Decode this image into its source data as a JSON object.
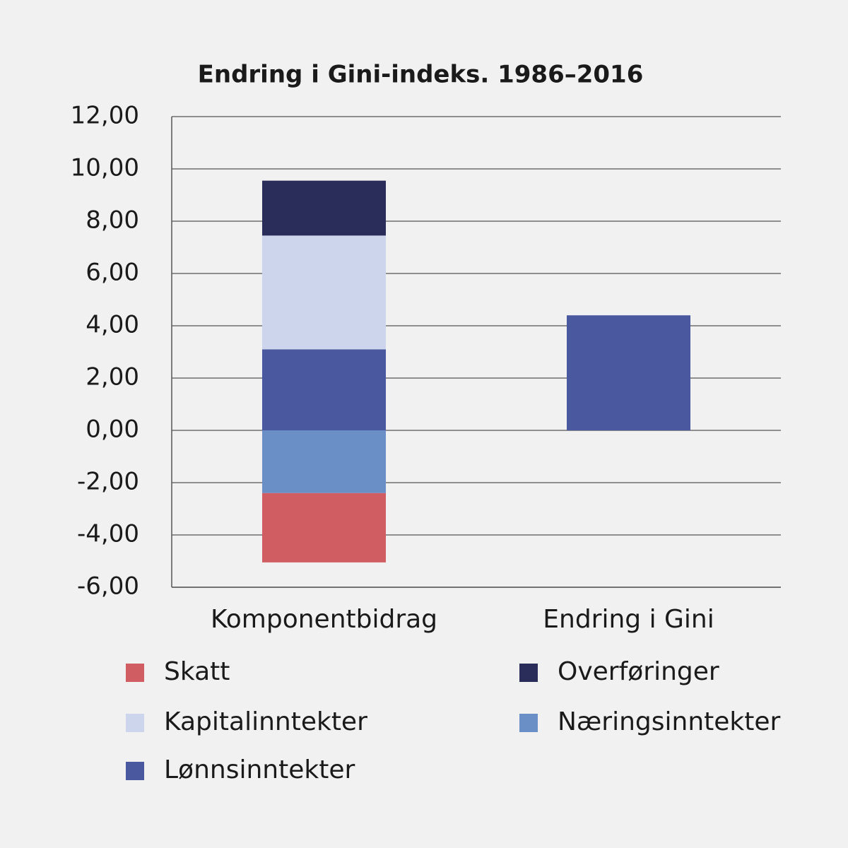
{
  "chart_data": {
    "type": "stacked_bar",
    "title": "Endring i Gini-indeks. 1986–2016",
    "categories": [
      "Komponentbidrag",
      "Endring i Gini"
    ],
    "series": [
      {
        "name": "Lønnsinntekter",
        "color": "#4a58a0",
        "values": [
          3.1,
          4.4
        ]
      },
      {
        "name": "Næringsinntekter",
        "color": "#6a8fc7",
        "values": [
          -2.4,
          null
        ]
      },
      {
        "name": "Kapitalinntekter",
        "color": "#cdd5ed",
        "values": [
          4.35,
          null
        ]
      },
      {
        "name": "Skatt",
        "color": "#d05d62",
        "values": [
          -2.65,
          null
        ]
      },
      {
        "name": "Overføringer",
        "color": "#2a2d5a",
        "values": [
          2.1,
          null
        ]
      }
    ],
    "ylim": [
      -6,
      12
    ],
    "yticks": [
      {
        "value": -6,
        "label": "-6,00"
      },
      {
        "value": -4,
        "label": "-4,00"
      },
      {
        "value": -2,
        "label": "-2,00"
      },
      {
        "value": 0,
        "label": "0,00"
      },
      {
        "value": 2,
        "label": "2,00"
      },
      {
        "value": 4,
        "label": "4,00"
      },
      {
        "value": 6,
        "label": "6,00"
      },
      {
        "value": 8,
        "label": "8,00"
      },
      {
        "value": 10,
        "label": "10,00"
      },
      {
        "value": 12,
        "label": "12,00"
      }
    ],
    "grid": true
  }
}
